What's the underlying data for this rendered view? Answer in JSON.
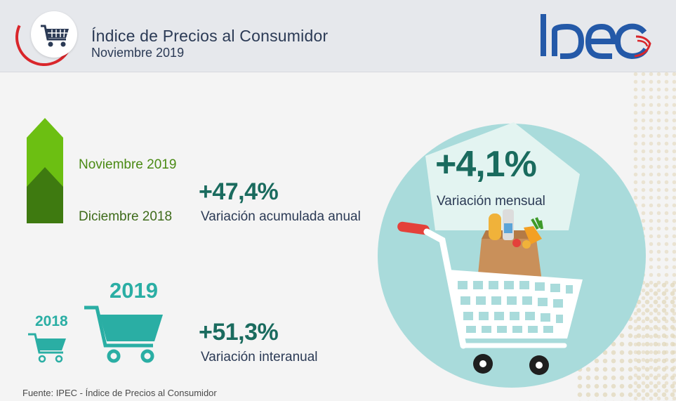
{
  "header": {
    "title": "Índice de Precios al Consumidor",
    "subtitle": "Noviembre 2019",
    "logo_text": "Ipec"
  },
  "accumulated": {
    "label_top": "Noviembre 2019",
    "label_bottom": "Diciembre 2018",
    "value": "+47,4%",
    "description": "Variación acumulada anual"
  },
  "interannual": {
    "year_small": "2018",
    "year_big": "2019",
    "value": "+51,3%",
    "description": "Variación interanual"
  },
  "monthly": {
    "value": "+4,1%",
    "description": "Variación mensual"
  },
  "source": "Fuente: IPEC - Índice de Precios al Consumidor",
  "colors": {
    "dark_teal": "#1a6b5e",
    "teal": "#2aaea4",
    "light_teal": "#a9dbdb",
    "green_light": "#6cbf12",
    "green_dark": "#3e7a10",
    "navy": "#2b3a55",
    "red": "#d9262b",
    "logo_blue": "#2459a8"
  },
  "icons": [
    "shopping-cart-icon",
    "up-arrow-icon",
    "grocery-bag-icon"
  ]
}
